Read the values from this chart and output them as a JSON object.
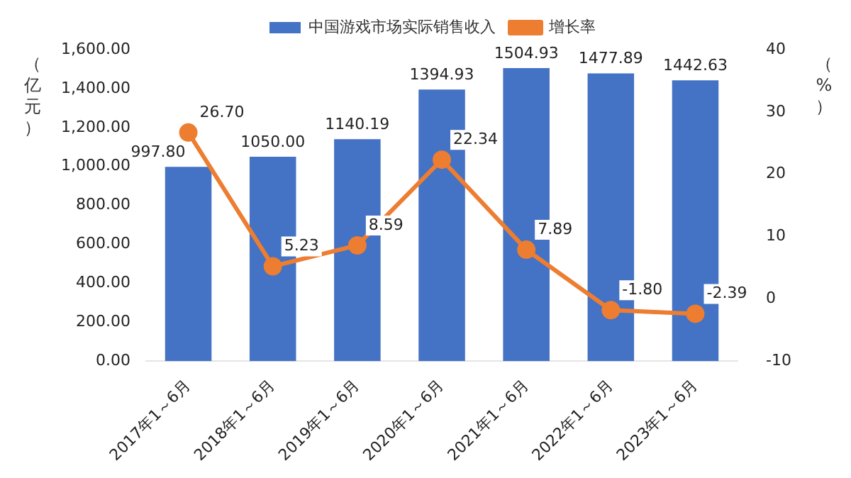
{
  "chart_data": {
    "type": "bar",
    "ylabel": "（亿元）",
    "y2label": "（%）",
    "categories": [
      "2017年1～6月",
      "2018年1～6月",
      "2019年1～6月",
      "2020年1～6月",
      "2021年1～6月",
      "2022年1～6月",
      "2023年1～6月"
    ],
    "series": [
      {
        "name": "中国游戏市场实际销售收入",
        "color": "#4472c4",
        "values": [
          997.8,
          1050,
          1140.19,
          1394.93,
          1504.93,
          1477.89,
          1442.63
        ],
        "value_labels": [
          "997.80",
          "1050.00",
          "1140.19",
          "1394.93",
          "1504.93",
          "1477.89",
          "1442.63"
        ]
      },
      {
        "name": "增长率",
        "type": "line",
        "axis": "y2",
        "color": "#ed7d31",
        "marker": "circle",
        "values": [
          26.7,
          5.23,
          8.59,
          22.34,
          7.89,
          -1.8,
          -2.39
        ],
        "value_labels": [
          "26.70",
          "5.23",
          "8.59",
          "22.34",
          "7.89",
          "-1.80",
          "-2.39"
        ]
      }
    ],
    "ylim": [
      0,
      1600
    ],
    "yticks": [
      {
        "value": 0,
        "label": "0.00"
      },
      {
        "value": 200,
        "label": "200.00"
      },
      {
        "value": 400,
        "label": "400.00"
      },
      {
        "value": 600,
        "label": "600.00"
      },
      {
        "value": 800,
        "label": "800.00"
      },
      {
        "value": 1000,
        "label": "1,000.00"
      },
      {
        "value": 1200,
        "label": "1,200.00"
      },
      {
        "value": 1400,
        "label": "1,400.00"
      },
      {
        "value": 1600,
        "label": "1,600.00"
      }
    ],
    "y2lim": [
      -10,
      40
    ],
    "y2ticks": [
      -10,
      0,
      10,
      20,
      30,
      40
    ],
    "grid": false,
    "legend": "top"
  }
}
